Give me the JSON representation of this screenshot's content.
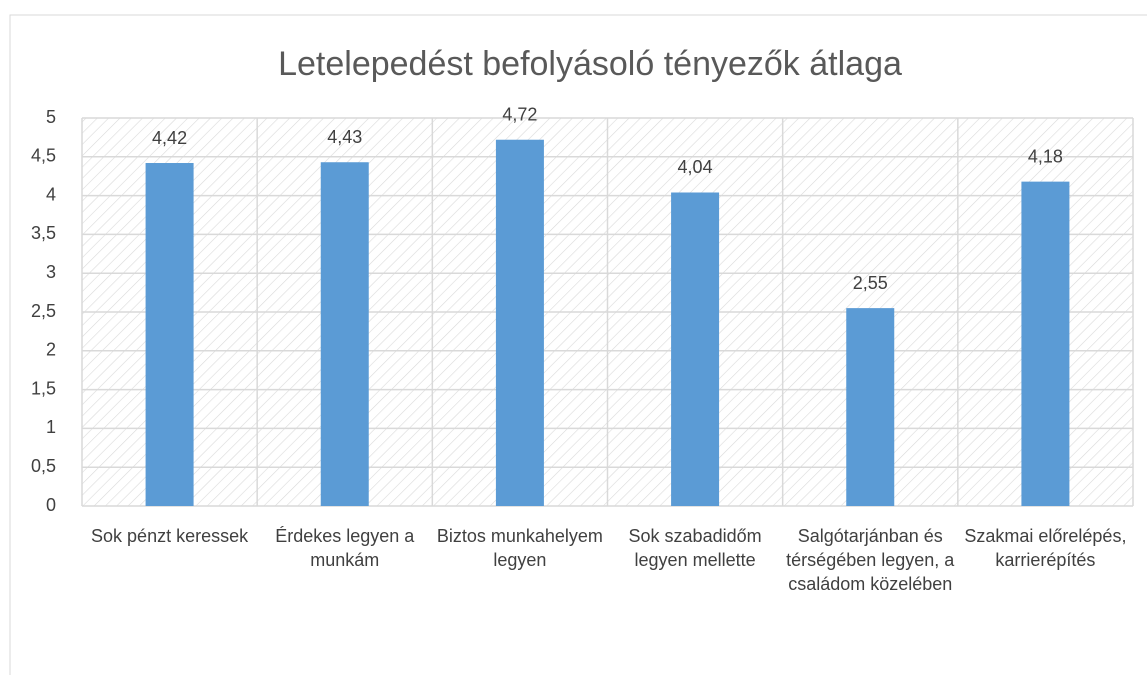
{
  "chart_data": {
    "type": "bar",
    "title": "Letelepedést befolyásoló tényezők átlaga",
    "categories": [
      "Sok pénzt keressek",
      "Érdekes legyen a munkám",
      "Biztos munkahelyem legyen",
      "Sok szabadidőm legyen mellette",
      "Salgótarjánban és térségében legyen, a családom közelében",
      "Szakmai előrelépés, karrierépítés"
    ],
    "values": [
      4.42,
      4.43,
      4.72,
      4.04,
      2.55,
      4.18
    ],
    "value_labels": [
      "4,42",
      "4,43",
      "4,72",
      "4,04",
      "2,55",
      "4,18"
    ],
    "color": "#5b9bd5",
    "ylim": [
      0,
      5
    ],
    "yticks": [
      0,
      {
        "value": 0.5,
        "label": "0,5"
      },
      1,
      {
        "value": 1.5,
        "label": "1,5"
      },
      2,
      {
        "value": 2.5,
        "label": "2,5"
      },
      3,
      {
        "value": 3.5,
        "label": "3,5"
      },
      4,
      {
        "value": 4.5,
        "label": "4,5"
      },
      5
    ],
    "grid": true
  }
}
